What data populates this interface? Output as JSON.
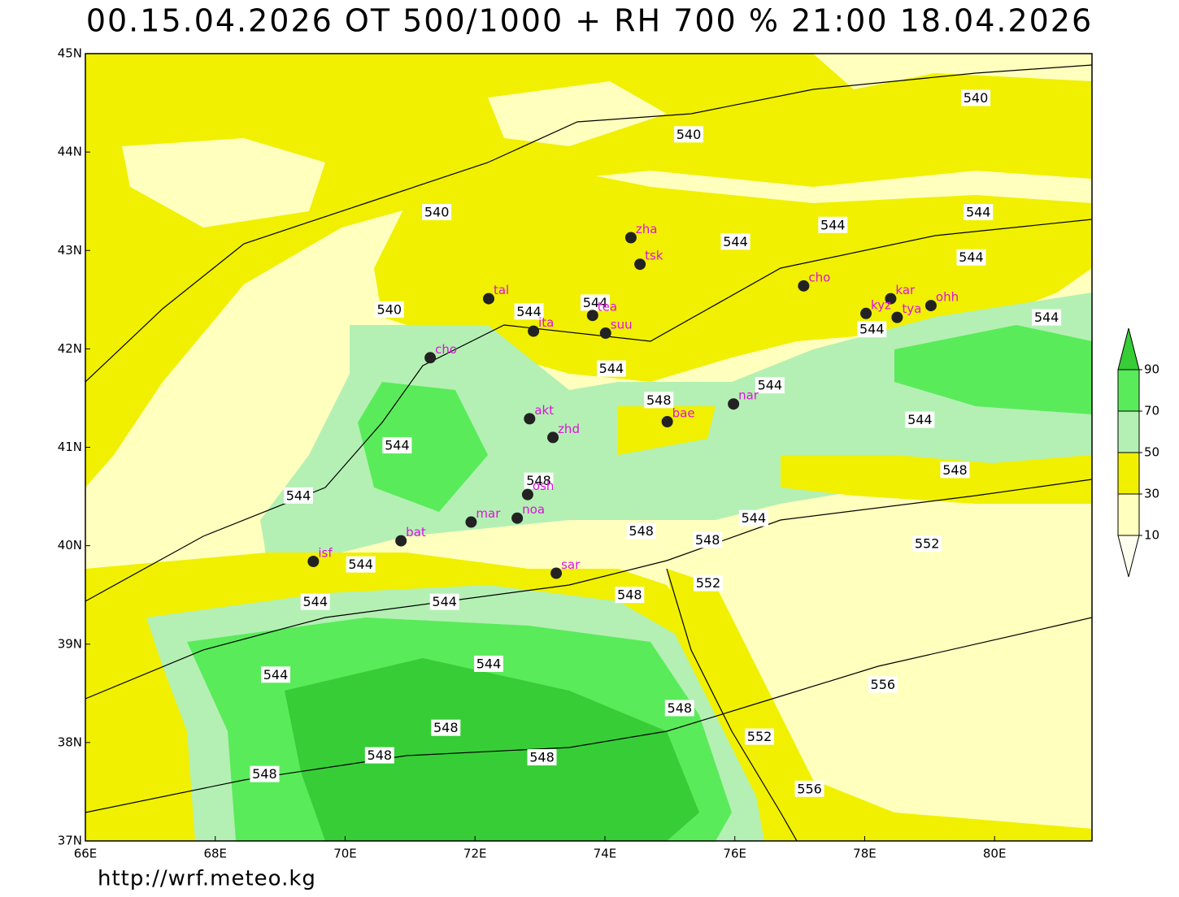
{
  "map": {
    "title": "00.15.04.2026 OT 500/1000 + RH 700 % 21:00 18.04.2026",
    "url": "http://wrf.meteo.kg",
    "lonlim": [
      66,
      81.5
    ],
    "latlim": [
      37,
      45
    ],
    "lonticks": [
      {
        "value": 66,
        "label": "66E"
      },
      {
        "value": 68,
        "label": "68E"
      },
      {
        "value": 70,
        "label": "70E"
      },
      {
        "value": 72,
        "label": "72E"
      },
      {
        "value": 74,
        "label": "74E"
      },
      {
        "value": 76,
        "label": "76E"
      },
      {
        "value": 78,
        "label": "78E"
      },
      {
        "value": 80,
        "label": "80E"
      }
    ],
    "latticks": [
      {
        "value": 37,
        "label": "37N"
      },
      {
        "value": 38,
        "label": "38N"
      },
      {
        "value": 39,
        "label": "39N"
      },
      {
        "value": 40,
        "label": "40N"
      },
      {
        "value": 41,
        "label": "41N"
      },
      {
        "value": 42,
        "label": "42N"
      },
      {
        "value": 43,
        "label": "43N"
      },
      {
        "value": 44,
        "label": "44N"
      },
      {
        "value": 45,
        "label": "45N"
      }
    ],
    "stations": [
      {
        "code": "zha",
        "lon": 74.4,
        "lat": 43.13
      },
      {
        "code": "tsk",
        "lon": 74.54,
        "lat": 42.86
      },
      {
        "code": "tal",
        "lon": 72.21,
        "lat": 42.51
      },
      {
        "code": "tea",
        "lon": 73.81,
        "lat": 42.34
      },
      {
        "code": "ita",
        "lon": 72.9,
        "lat": 42.18
      },
      {
        "code": "suu",
        "lon": 74.01,
        "lat": 42.16
      },
      {
        "code": "cho",
        "lon": 71.31,
        "lat": 41.91
      },
      {
        "code": "cho",
        "lon": 77.06,
        "lat": 42.64
      },
      {
        "code": "kar",
        "lon": 78.4,
        "lat": 42.51
      },
      {
        "code": "kyz",
        "lon": 78.02,
        "lat": 42.36
      },
      {
        "code": "tya",
        "lon": 78.5,
        "lat": 42.32
      },
      {
        "code": "ohh",
        "lon": 79.02,
        "lat": 42.44
      },
      {
        "code": "nar",
        "lon": 75.98,
        "lat": 41.44
      },
      {
        "code": "bae",
        "lon": 74.96,
        "lat": 41.26
      },
      {
        "code": "akt",
        "lon": 72.84,
        "lat": 41.29
      },
      {
        "code": "zhd",
        "lon": 73.2,
        "lat": 41.1
      },
      {
        "code": "osh",
        "lon": 72.81,
        "lat": 40.52
      },
      {
        "code": "noa",
        "lon": 72.65,
        "lat": 40.28
      },
      {
        "code": "mar",
        "lon": 71.94,
        "lat": 40.24
      },
      {
        "code": "bat",
        "lon": 70.86,
        "lat": 40.05
      },
      {
        "code": "isf",
        "lon": 69.51,
        "lat": 39.84
      },
      {
        "code": "sar",
        "lon": 73.25,
        "lat": 39.72
      }
    ],
    "contour_labels": [
      {
        "value": 540,
        "lon": 75.29,
        "lat": 44.18
      },
      {
        "value": 540,
        "lon": 79.71,
        "lat": 44.55
      },
      {
        "value": 540,
        "lon": 71.41,
        "lat": 43.39
      },
      {
        "value": 540,
        "lon": 70.68,
        "lat": 42.4
      },
      {
        "value": 544,
        "lon": 76.01,
        "lat": 43.09
      },
      {
        "value": 544,
        "lon": 77.51,
        "lat": 43.26
      },
      {
        "value": 544,
        "lon": 79.75,
        "lat": 43.39
      },
      {
        "value": 544,
        "lon": 79.64,
        "lat": 42.93
      },
      {
        "value": 544,
        "lon": 72.83,
        "lat": 42.38
      },
      {
        "value": 544,
        "lon": 73.85,
        "lat": 42.47
      },
      {
        "value": 544,
        "lon": 78.11,
        "lat": 42.2
      },
      {
        "value": 544,
        "lon": 80.8,
        "lat": 42.32
      },
      {
        "value": 544,
        "lon": 74.1,
        "lat": 41.8
      },
      {
        "value": 544,
        "lon": 76.54,
        "lat": 41.63
      },
      {
        "value": 544,
        "lon": 78.85,
        "lat": 41.28
      },
      {
        "value": 544,
        "lon": 70.8,
        "lat": 41.02
      },
      {
        "value": 544,
        "lon": 69.28,
        "lat": 40.51
      },
      {
        "value": 544,
        "lon": 76.29,
        "lat": 40.28
      },
      {
        "value": 544,
        "lon": 70.24,
        "lat": 39.81
      },
      {
        "value": 544,
        "lon": 69.54,
        "lat": 39.43
      },
      {
        "value": 544,
        "lon": 71.53,
        "lat": 39.43
      },
      {
        "value": 544,
        "lon": 68.93,
        "lat": 38.69
      },
      {
        "value": 544,
        "lon": 72.21,
        "lat": 38.8
      },
      {
        "value": 548,
        "lon": 74.83,
        "lat": 41.48
      },
      {
        "value": 548,
        "lon": 72.98,
        "lat": 40.66
      },
      {
        "value": 548,
        "lon": 74.56,
        "lat": 40.15
      },
      {
        "value": 548,
        "lon": 75.58,
        "lat": 40.06
      },
      {
        "value": 548,
        "lon": 79.39,
        "lat": 40.77
      },
      {
        "value": 548,
        "lon": 74.38,
        "lat": 39.5
      },
      {
        "value": 548,
        "lon": 75.15,
        "lat": 38.35
      },
      {
        "value": 548,
        "lon": 71.55,
        "lat": 38.15
      },
      {
        "value": 548,
        "lon": 70.53,
        "lat": 37.87
      },
      {
        "value": 548,
        "lon": 73.03,
        "lat": 37.85
      },
      {
        "value": 548,
        "lon": 68.76,
        "lat": 37.68
      },
      {
        "value": 552,
        "lon": 78.96,
        "lat": 40.02
      },
      {
        "value": 552,
        "lon": 75.59,
        "lat": 39.62
      },
      {
        "value": 552,
        "lon": 76.38,
        "lat": 38.06
      },
      {
        "value": 556,
        "lon": 78.28,
        "lat": 38.59
      },
      {
        "value": 556,
        "lon": 77.15,
        "lat": 37.53
      }
    ],
    "colorbar": {
      "ticks": [
        10,
        30,
        50,
        70,
        90
      ],
      "colors": [
        "#fffff0",
        "#ffffbe",
        "#f0f000",
        "#b4f0b4",
        "#5aeb5a",
        "#37cd37"
      ]
    }
  }
}
